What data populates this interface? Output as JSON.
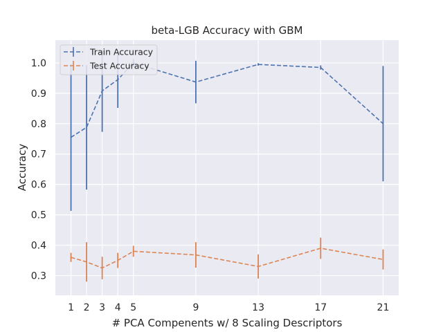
{
  "chart_data": {
    "type": "line",
    "title": "beta-LGB Accuracy with GBM",
    "xlabel": "# PCA Compenents w/ 8 Scaling Descriptors",
    "ylabel": "Accuracy",
    "x": [
      1,
      2,
      3,
      4,
      5,
      9,
      13,
      17,
      21
    ],
    "xticks": [
      "1",
      "2",
      "3",
      "4",
      "5",
      "9",
      "13",
      "17",
      "21"
    ],
    "xlim": [
      0,
      22
    ],
    "ylim": [
      0.235,
      1.075
    ],
    "yticks": [
      0.3,
      0.4,
      0.5,
      0.6,
      0.7,
      0.8,
      0.9,
      1.0
    ],
    "ytick_labels": [
      "0.3",
      "0.4",
      "0.5",
      "0.6",
      "0.7",
      "0.8",
      "0.9",
      "1.0"
    ],
    "grid": true,
    "legend_position": "top-left",
    "series": [
      {
        "name": "Train Accuracy",
        "color": "#4c72b0",
        "values": [
          0.755,
          0.788,
          0.908,
          0.945,
          1.0,
          0.937,
          0.995,
          0.985,
          0.8
        ],
        "errors": [
          0.242,
          0.205,
          0.135,
          0.093,
          0.013,
          0.07,
          0.004,
          0.007,
          0.19
        ]
      },
      {
        "name": "Test Accuracy",
        "color": "#dd8452",
        "values": [
          0.36,
          0.345,
          0.325,
          0.35,
          0.38,
          0.368,
          0.33,
          0.39,
          0.353
        ],
        "errors": [
          0.015,
          0.065,
          0.037,
          0.025,
          0.018,
          0.042,
          0.04,
          0.035,
          0.033
        ]
      }
    ]
  }
}
